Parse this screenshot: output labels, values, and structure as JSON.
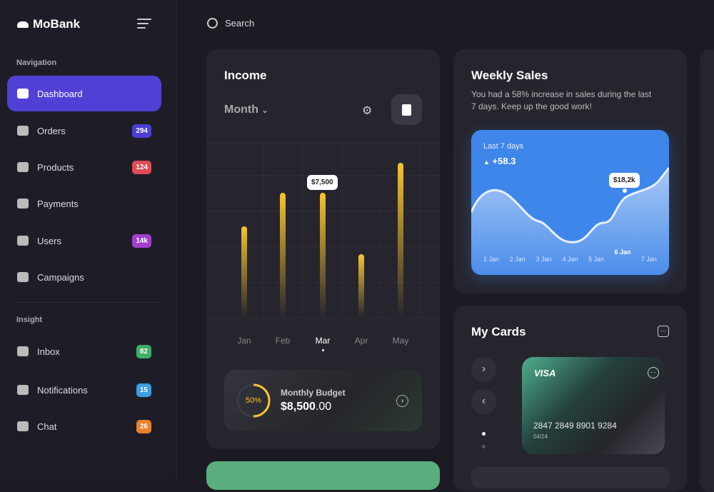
{
  "brand": "MoBank",
  "sidebar": {
    "nav_heading": "Navigation",
    "insight_heading": "Insight",
    "items": [
      {
        "label": "Dashboard",
        "active": true
      },
      {
        "label": "Orders",
        "badge": "294",
        "badge_color": "#4b3fd4"
      },
      {
        "label": "Products",
        "badge": "124",
        "badge_color": "#e04b56"
      },
      {
        "label": "Payments"
      },
      {
        "label": "Users",
        "badge": "14k",
        "badge_color": "#a43ed0"
      },
      {
        "label": "Campaigns"
      },
      {
        "label": "Inbox",
        "badge": "82",
        "badge_color": "#3fae6a"
      },
      {
        "label": "Notifications",
        "badge": "15",
        "badge_color": "#3a9ee0"
      },
      {
        "label": "Chat",
        "badge": "26",
        "badge_color": "#e9812d"
      }
    ]
  },
  "search": {
    "placeholder": "Search"
  },
  "income": {
    "title": "Income",
    "period": "Month",
    "chart_data": {
      "type": "bar",
      "categories": [
        "Jan",
        "Feb",
        "Mar",
        "Apr",
        "May"
      ],
      "values": [
        5500,
        7500,
        7500,
        3800,
        9300
      ],
      "highlight": "Mar",
      "highlight_label": "$7,500",
      "color": "#f5c431"
    },
    "budget": {
      "percent": "50%",
      "title": "Monthly Budget",
      "amount_main": "$8,500",
      "amount_cents": ".00",
      "fraction": 0.5
    }
  },
  "weekly": {
    "title": "Weekly Sales",
    "subtitle": "You had a 58% increase in sales during the last 7 days. Keep up the good work!",
    "range": "Last 7 days",
    "change": "+58.3",
    "chart_data": {
      "type": "area",
      "categories": [
        "1 Jan",
        "2 Jan",
        "3 Jan",
        "4 Jan",
        "5 Jan",
        "6 Jan",
        "7 Jan"
      ],
      "highlight": "6 Jan",
      "highlight_label": "$18,2k"
    }
  },
  "cards": {
    "title": "My Cards",
    "brand": "VISA",
    "number": "2847 2849 8901 9284",
    "expiry": "04/24"
  }
}
